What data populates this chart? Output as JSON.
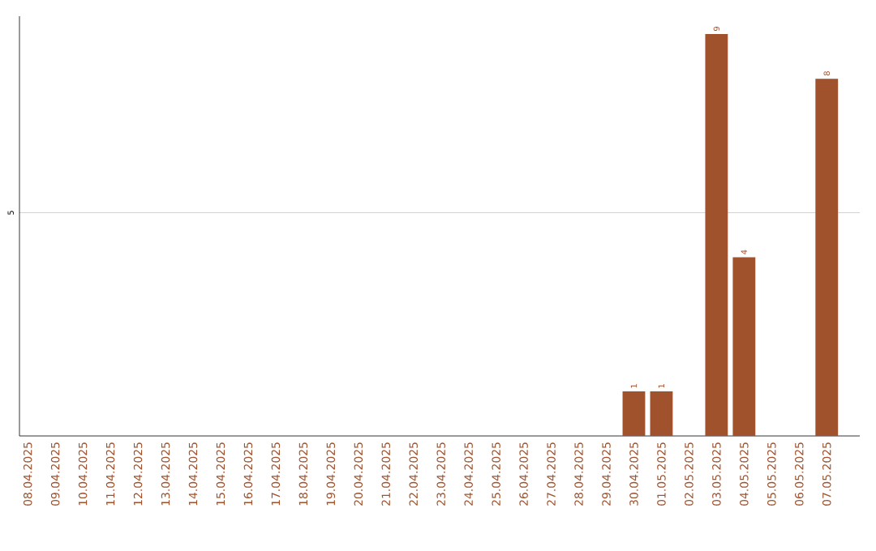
{
  "chart_data": {
    "type": "bar",
    "categories": [
      "08.04.2025",
      "09.04.2025",
      "10.04.2025",
      "11.04.2025",
      "12.04.2025",
      "13.04.2025",
      "14.04.2025",
      "15.04.2025",
      "16.04.2025",
      "17.04.2025",
      "18.04.2025",
      "19.04.2025",
      "20.04.2025",
      "21.04.2025",
      "22.04.2025",
      "23.04.2025",
      "24.04.2025",
      "25.04.2025",
      "26.04.2025",
      "27.04.2025",
      "28.04.2025",
      "29.04.2025",
      "30.04.2025",
      "01.05.2025",
      "02.05.2025",
      "03.05.2025",
      "04.05.2025",
      "05.05.2025",
      "06.05.2025",
      "07.05.2025"
    ],
    "values": [
      null,
      null,
      null,
      null,
      null,
      null,
      null,
      null,
      null,
      null,
      null,
      null,
      null,
      null,
      null,
      null,
      null,
      null,
      null,
      null,
      null,
      null,
      1,
      1,
      null,
      9,
      4,
      null,
      null,
      8
    ],
    "data_labels": true,
    "color": "#a0522d",
    "ylim": [
      0,
      9.4
    ],
    "yticks": [
      5
    ],
    "grid": "y"
  }
}
